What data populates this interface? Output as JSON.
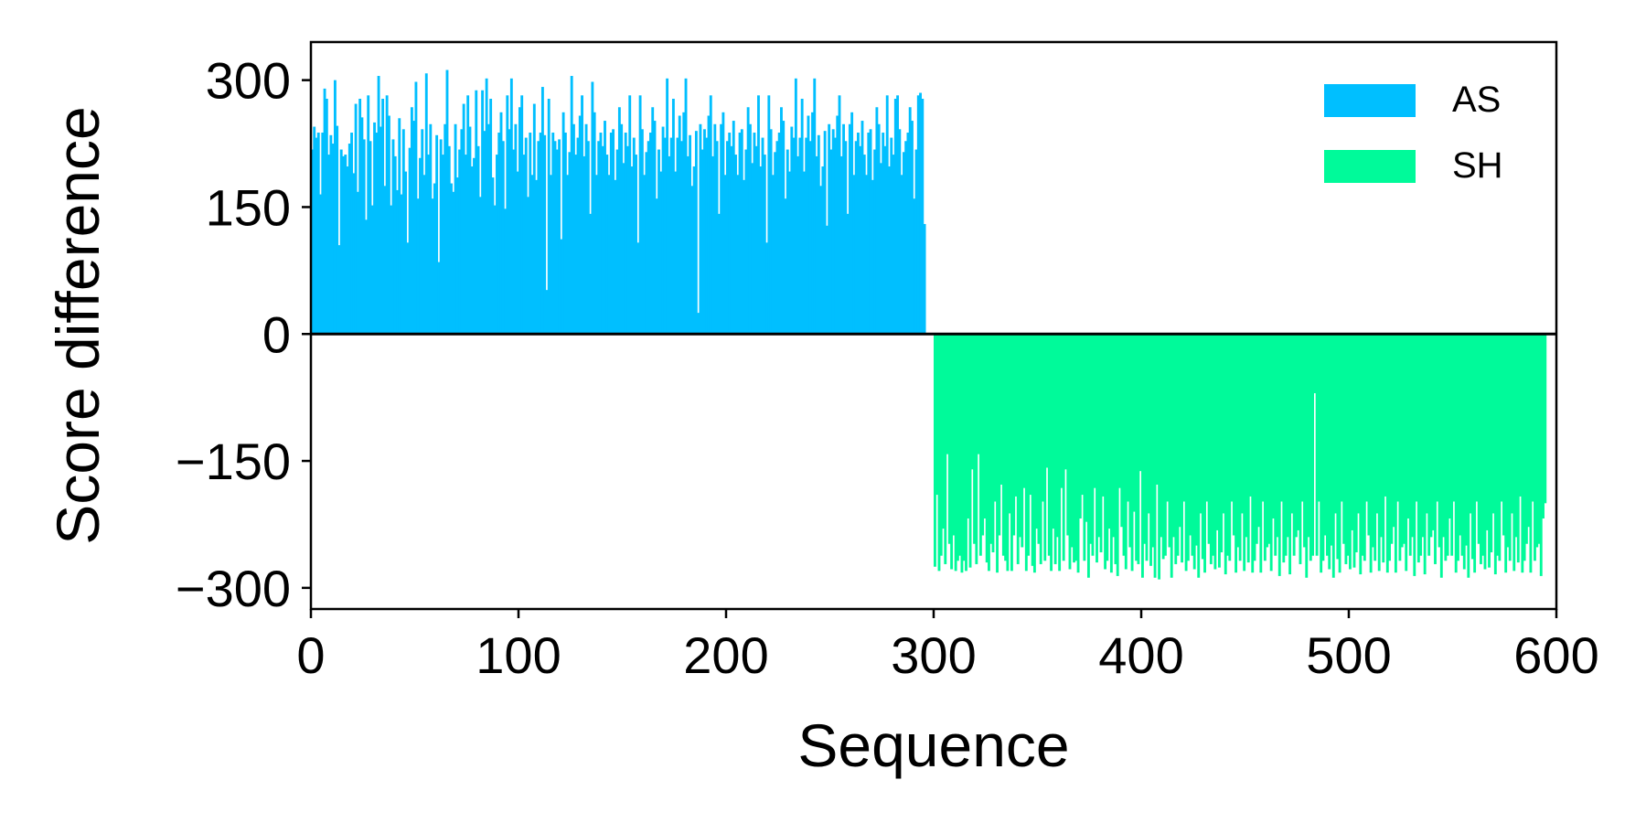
{
  "chart_data": {
    "type": "bar",
    "title": "",
    "xlabel": "Sequence",
    "ylabel": "Score difference",
    "xlim": [
      0,
      600
    ],
    "ylim": [
      -325,
      345
    ],
    "xticks": [
      0,
      100,
      200,
      300,
      400,
      500,
      600
    ],
    "xtick_labels": [
      "0",
      "100",
      "200",
      "300",
      "400",
      "500",
      "600"
    ],
    "yticks": [
      300,
      150,
      0,
      -150,
      -300
    ],
    "ytick_labels": [
      "300",
      "150",
      "0",
      "−150",
      "−300"
    ],
    "legend_position": "top-right",
    "grid": false,
    "series": [
      {
        "name": "AS",
        "color": "#00BFFF",
        "x_range": [
          0,
          299
        ],
        "values": [
          218,
          245,
          232,
          238,
          165,
          238,
          290,
          278,
          212,
          235,
          225,
          300,
          246,
          105,
          218,
          210,
          212,
          198,
          225,
          238,
          190,
          272,
          168,
          278,
          256,
          230,
          135,
          282,
          228,
          152,
          250,
          238,
          305,
          245,
          278,
          175,
          282,
          258,
          152,
          230,
          210,
          170,
          255,
          165,
          242,
          192,
          108,
          220,
          268,
          252,
          298,
          160,
          208,
          242,
          188,
          308,
          212,
          248,
          160,
          178,
          235,
          85,
          230,
          212,
          248,
          312,
          222,
          178,
          168,
          248,
          185,
          218,
          242,
          272,
          212,
          282,
          245,
          198,
          208,
          288,
          222,
          162,
          288,
          240,
          302,
          248,
          278,
          185,
          152,
          212,
          238,
          262,
          228,
          148,
          282,
          242,
          302,
          218,
          248,
          192,
          268,
          282,
          212,
          232,
          162,
          238,
          188,
          272,
          182,
          228,
          238,
          292,
          235,
          52,
          278,
          188,
          238,
          228,
          218,
          230,
          112,
          262,
          238,
          188,
          215,
          305,
          248,
          212,
          232,
          258,
          282,
          210,
          248,
          228,
          142,
          298,
          262,
          188,
          228,
          238,
          222,
          252,
          212,
          188,
          238,
          242,
          182,
          218,
          268,
          248,
          202,
          238,
          222,
          282,
          198,
          232,
          212,
          108,
          282,
          242,
          188,
          215,
          228,
          238,
          268,
          252,
          160,
          218,
          192,
          245,
          232,
          302,
          210,
          232,
          278,
          192,
          232,
          258,
          228,
          262,
          302,
          210,
          235,
          175,
          198,
          240,
          25,
          248,
          218,
          242,
          232,
          258,
          282,
          210,
          248,
          228,
          142,
          248,
          262,
          188,
          228,
          238,
          222,
          252,
          212,
          188,
          238,
          242,
          182,
          218,
          268,
          248,
          202,
          238,
          222,
          282,
          198,
          232,
          212,
          108,
          282,
          242,
          188,
          215,
          228,
          238,
          268,
          252,
          160,
          218,
          192,
          245,
          232,
          302,
          210,
          232,
          278,
          192,
          232,
          258,
          228,
          262,
          302,
          210,
          235,
          175,
          198,
          240,
          128,
          248,
          218,
          242,
          232,
          258,
          282,
          210,
          248,
          228,
          142,
          248,
          262,
          188,
          228,
          238,
          222,
          252,
          212,
          188,
          238,
          242,
          182,
          218,
          268,
          248,
          202,
          238,
          222,
          282,
          198,
          232,
          212,
          278,
          282,
          242,
          188,
          215,
          228,
          238,
          268,
          252,
          160,
          218,
          282,
          285,
          278,
          130
        ]
      },
      {
        "name": "SH",
        "color": "#00FA9A",
        "x_range": [
          300,
          599
        ],
        "values": [
          -275,
          -190,
          -280,
          -262,
          -230,
          -272,
          -142,
          -248,
          -278,
          -238,
          -280,
          -268,
          -262,
          -282,
          -268,
          -280,
          -218,
          -276,
          -160,
          -248,
          -272,
          -142,
          -262,
          -238,
          -218,
          -270,
          -280,
          -248,
          -258,
          -198,
          -282,
          -238,
          -178,
          -262,
          -268,
          -280,
          -212,
          -280,
          -238,
          -192,
          -272,
          -240,
          -252,
          -182,
          -280,
          -262,
          -190,
          -274,
          -282,
          -230,
          -248,
          -272,
          -198,
          -268,
          -158,
          -262,
          -280,
          -230,
          -272,
          -240,
          -280,
          -182,
          -268,
          -160,
          -238,
          -278,
          -252,
          -270,
          -268,
          -282,
          -218,
          -190,
          -268,
          -222,
          -288,
          -248,
          -262,
          -182,
          -270,
          -240,
          -258,
          -192,
          -278,
          -268,
          -230,
          -282,
          -240,
          -272,
          -286,
          -182,
          -228,
          -262,
          -278,
          -198,
          -252,
          -280,
          -210,
          -268,
          -272,
          -162,
          -288,
          -248,
          -268,
          -212,
          -274,
          -252,
          -288,
          -178,
          -290,
          -240,
          -266,
          -262,
          -198,
          -252,
          -288,
          -240,
          -272,
          -262,
          -228,
          -270,
          -198,
          -280,
          -268,
          -238,
          -262,
          -278,
          -250,
          -288,
          -212,
          -266,
          -282,
          -198,
          -248,
          -272,
          -262,
          -278,
          -232,
          -276,
          -258,
          -212,
          -284,
          -262,
          -268,
          -198,
          -238,
          -282,
          -252,
          -268,
          -212,
          -280,
          -240,
          -270,
          -192,
          -282,
          -268,
          -248,
          -228,
          -282,
          -198,
          -268,
          -252,
          -248,
          -280,
          -218,
          -262,
          -240,
          -286,
          -198,
          -270,
          -262,
          -240,
          -284,
          -212,
          -262,
          -240,
          -232,
          -272,
          -198,
          -252,
          -288,
          -240,
          -268,
          -262,
          -70,
          -262,
          -198,
          -282,
          -268,
          -238,
          -262,
          -278,
          -250,
          -288,
          -212,
          -266,
          -282,
          -198,
          -248,
          -272,
          -262,
          -278,
          -232,
          -276,
          -258,
          -212,
          -284,
          -262,
          -268,
          -198,
          -238,
          -282,
          -252,
          -268,
          -212,
          -280,
          -240,
          -270,
          -192,
          -282,
          -268,
          -248,
          -228,
          -282,
          -198,
          -268,
          -252,
          -248,
          -280,
          -218,
          -262,
          -240,
          -286,
          -198,
          -270,
          -262,
          -240,
          -284,
          -212,
          -262,
          -240,
          -232,
          -272,
          -198,
          -252,
          -288,
          -240,
          -268,
          -262,
          -218,
          -262,
          -198,
          -282,
          -268,
          -238,
          -262,
          -278,
          -250,
          -288,
          -212,
          -266,
          -282,
          -198,
          -248,
          -272,
          -262,
          -278,
          -232,
          -276,
          -258,
          -212,
          -284,
          -262,
          -268,
          -198,
          -238,
          -282,
          -252,
          -268,
          -212,
          -280,
          -240,
          -270,
          -192,
          -282,
          -268,
          -248,
          -228,
          -282,
          -198,
          -268,
          -252,
          -248,
          -286,
          -218,
          -200
        ]
      }
    ]
  }
}
